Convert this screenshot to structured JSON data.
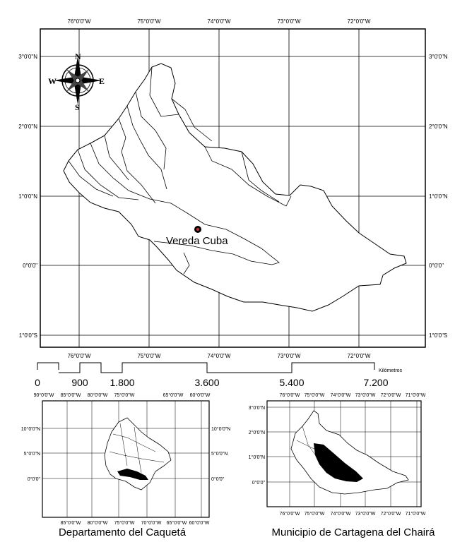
{
  "main_map": {
    "lon_labels": [
      "76°0'0\"W",
      "75°0'0\"W",
      "74°0'0\"W",
      "73°0'0\"W",
      "72°0'0\"W"
    ],
    "lat_labels": [
      "3°0'0\"N",
      "2°0'0\"N",
      "1°0'0\"N",
      "0°0'0\"",
      "1°0'0\"S"
    ],
    "place_label": "Vereda Cuba",
    "compass": {
      "n": "N",
      "s": "S",
      "e": "E",
      "w": "W"
    }
  },
  "scale_bar": {
    "labels": [
      "0",
      "900",
      "1.800",
      "3.600",
      "5.400",
      "7.200"
    ],
    "unit": "Kilómetros"
  },
  "inset_left": {
    "caption": "Departamento del Caquetá",
    "top_lon_labels": [
      "90°0'0\"W",
      "85°0'0\"W",
      "80°0'0\"W",
      "75°0'0\"W",
      "65°0'0\"W",
      "60°0'0\"W"
    ],
    "bottom_lon_labels": [
      "85°0'0\"W",
      "80°0'0\"W",
      "75°0'0\"W",
      "70°0'0\"W",
      "65°0'0\"W",
      "60°0'0\"W"
    ],
    "lat_labels": [
      "10°0'0\"N",
      "5°0'0\"N",
      "0°0'0\""
    ]
  },
  "inset_right": {
    "caption": "Municipio de Cartagena del Chairá",
    "top_lon_labels": [
      "76°0'0\"W",
      "75°0'0\"W",
      "74°0'0\"W",
      "73°0'0\"W",
      "72°0'0\"W",
      "71°0'0\"W"
    ],
    "bottom_lon_labels": [
      "76°0'0\"W",
      "75°0'0\"W",
      "74°0'0\"W",
      "73°0'0\"W",
      "72°0'0\"W",
      "71°0'0\"W"
    ],
    "lat_labels": [
      "3°0'0\"N",
      "2°0'0\"N",
      "1°0'0\"N",
      "0°0'0\""
    ]
  }
}
